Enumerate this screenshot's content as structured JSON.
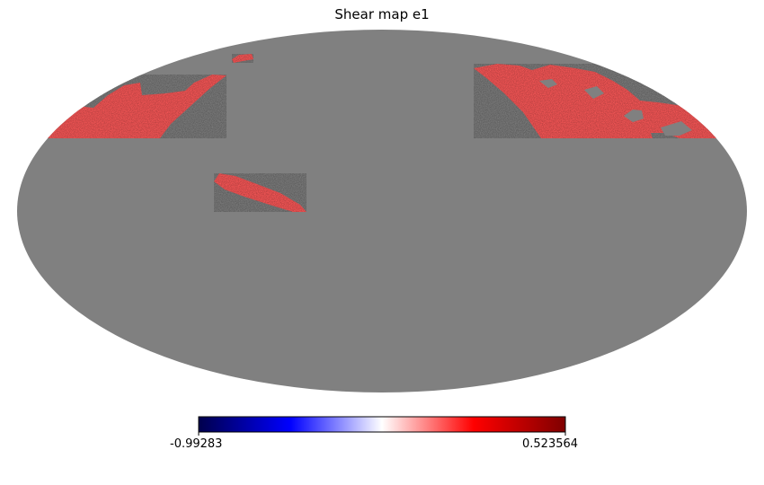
{
  "title": "Shear map e1",
  "projection": "mollweide",
  "background_color": "#808080",
  "data_color": "#ff5a5a",
  "colorbar": {
    "min_label": "-0.99283",
    "max_label": "0.523564",
    "colormap": "seismic",
    "stops": [
      "#00004c",
      "#0000ff",
      "#ffffff",
      "#ff0000",
      "#7f0000"
    ]
  }
}
